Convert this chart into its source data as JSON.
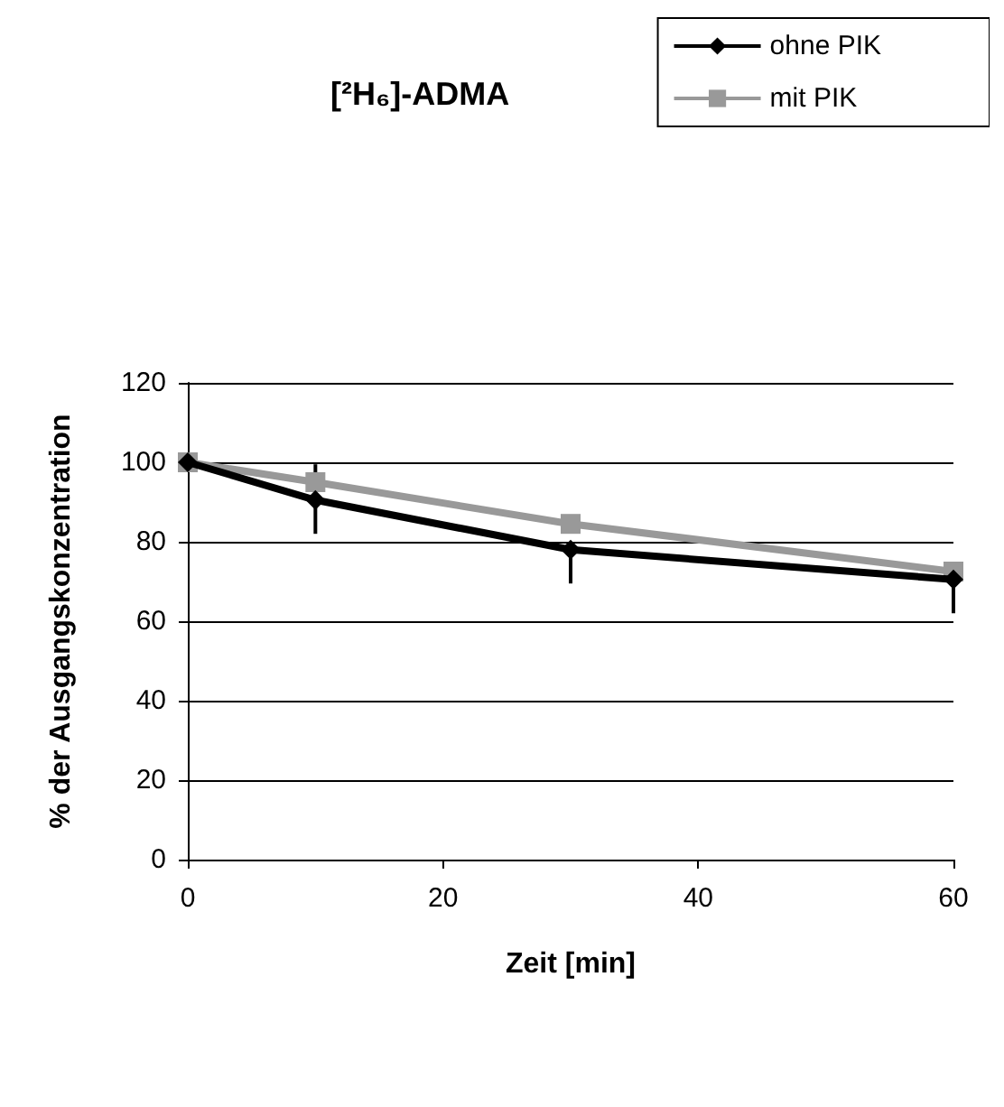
{
  "chart_data": {
    "type": "line",
    "title": "[²H₆]-ADMA",
    "xlabel": "Zeit [min]",
    "ylabel": "% der Ausgangskonzentration",
    "x": [
      0,
      10,
      30,
      60
    ],
    "series": [
      {
        "name": "ohne PIK",
        "color": "#000000",
        "marker": "diamond",
        "values": [
          100,
          90.5,
          78,
          70.5
        ],
        "errors": [
          null,
          [
            82,
            90.5
          ],
          [
            69.5,
            78
          ],
          [
            62,
            70.5
          ]
        ]
      },
      {
        "name": "mit PIK",
        "color": "#999999",
        "marker": "square",
        "values": [
          100,
          95,
          84.5,
          72.5
        ],
        "errors": [
          null,
          [
            95,
            99.5
          ],
          null,
          null
        ]
      }
    ],
    "xlim": [
      0,
      60
    ],
    "xticks": [
      0,
      20,
      40,
      60
    ],
    "ylim": [
      0,
      120
    ],
    "yticks": [
      0,
      20,
      40,
      60,
      80,
      100,
      120
    ],
    "grid": "y",
    "legend": "top right",
    "line_style": "solid"
  }
}
